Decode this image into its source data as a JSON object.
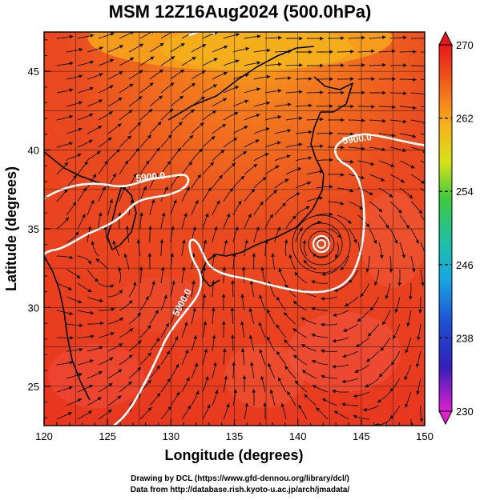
{
  "title": "MSM 12Z16Aug2024 (500.0hPa)",
  "xlabel": "Longitude (degrees)",
  "ylabel": "Latitude  (degrees)",
  "x_ticks": [
    "120",
    "125",
    "130",
    "135",
    "140",
    "145",
    "150"
  ],
  "y_ticks": [
    "25",
    "30",
    "35",
    "40",
    "45"
  ],
  "colorbar_ticks": [
    "270",
    "262",
    "254",
    "246",
    "238",
    "230"
  ],
  "contour_labels": [
    "5900.0",
    "5900.0",
    "5900.0"
  ],
  "credit_line1": "Drawing by DCL (https://www.gfd-dennou.org/library/dcl/)",
  "credit_line2": "Data from http://database.rish.kyoto-u.ac.jp/arch/jmadata/",
  "lon_range": [
    120,
    150
  ],
  "lat_range": [
    22.5,
    47.5
  ],
  "colorbar_range": [
    230,
    270
  ]
}
